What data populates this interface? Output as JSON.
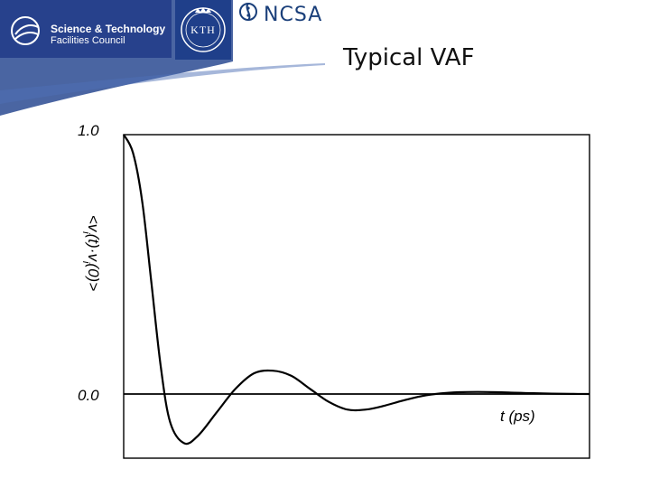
{
  "header": {
    "org_name": "Science & Technology",
    "org_sub": "Facilities Council",
    "kth_label": "KTH",
    "ncsa_label": "NCSA",
    "brand_color": "#27418c",
    "logo_icons": [
      "stfc-logo-icon",
      "kth-crest-icon",
      "ncsa-emblem-icon"
    ]
  },
  "slide": {
    "title": "Typical VAF"
  },
  "chart_data": {
    "type": "line",
    "title": "Typical VAF",
    "xlabel": "t (ps)",
    "ylabel": "<vi(t)·vi(0)>",
    "ylabel_parts": [
      "<v",
      "i",
      "(t)·v",
      "i",
      "(0)>"
    ],
    "ytick_labels": [
      "1.0",
      "0.0"
    ],
    "ytick_values": [
      1.0,
      0.0
    ],
    "ylim": [
      -0.2,
      1.0
    ],
    "xlim": [
      0,
      1
    ],
    "grid": false,
    "series": [
      {
        "name": "VAF",
        "x": [
          0.0,
          0.02,
          0.04,
          0.06,
          0.08,
          0.1,
          0.13,
          0.16,
          0.2,
          0.24,
          0.28,
          0.32,
          0.36,
          0.4,
          0.44,
          0.48,
          0.52,
          0.56,
          0.6,
          0.64,
          0.68,
          0.72,
          0.76,
          0.8,
          0.84,
          0.88,
          0.92,
          0.96,
          1.0
        ],
        "values": [
          1.0,
          0.93,
          0.74,
          0.42,
          0.1,
          -0.11,
          -0.19,
          -0.16,
          -0.07,
          0.02,
          0.08,
          0.09,
          0.07,
          0.02,
          -0.03,
          -0.06,
          -0.06,
          -0.045,
          -0.025,
          -0.008,
          0.002,
          0.007,
          0.008,
          0.007,
          0.005,
          0.003,
          0.0015,
          0.0005,
          0.0
        ]
      }
    ]
  }
}
